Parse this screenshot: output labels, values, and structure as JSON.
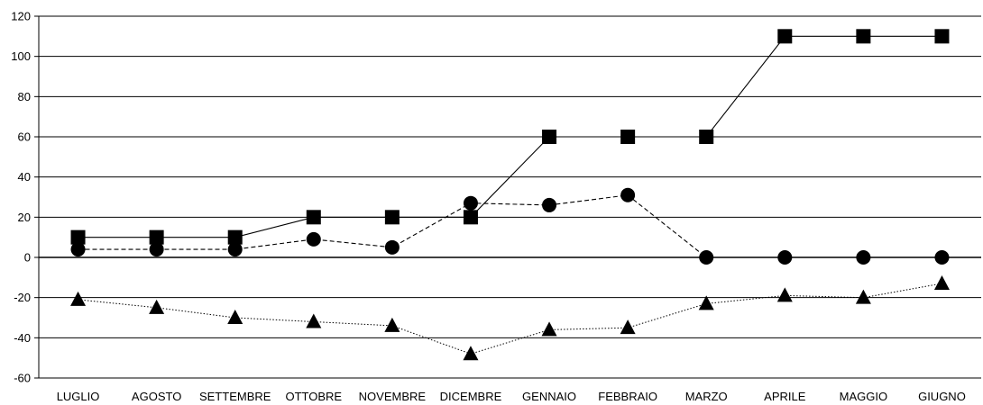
{
  "chart_data": {
    "type": "line",
    "title": "",
    "xlabel": "",
    "ylabel": "",
    "categories": [
      "LUGLIO",
      "AGOSTO",
      "SETTEMBRE",
      "OTTOBRE",
      "NOVEMBRE",
      "DICEMBRE",
      "GENNAIO",
      "FEBBRAIO",
      "MARZO",
      "APRILE",
      "MAGGIO",
      "GIUGNO"
    ],
    "ylim": [
      -60,
      120
    ],
    "yticks": [
      -60,
      -40,
      -20,
      0,
      20,
      40,
      60,
      80,
      100,
      120
    ],
    "grid": true,
    "legend": "none",
    "series": [
      {
        "marker": "square",
        "line": "solid",
        "values": [
          10,
          10,
          10,
          20,
          20,
          20,
          60,
          60,
          60,
          110,
          110,
          110
        ]
      },
      {
        "marker": "circle",
        "line": "dashed",
        "values": [
          4,
          4,
          4,
          9,
          5,
          27,
          26,
          31,
          0,
          0,
          0,
          0
        ]
      },
      {
        "marker": "triangle",
        "line": "dotted",
        "values": [
          -21,
          -25,
          -30,
          -32,
          -34,
          -48,
          -36,
          -35,
          -23,
          -19,
          -20,
          -13
        ]
      }
    ],
    "colors": {
      "marker": "#000000",
      "grid": "#000000",
      "axis": "#000000"
    }
  }
}
